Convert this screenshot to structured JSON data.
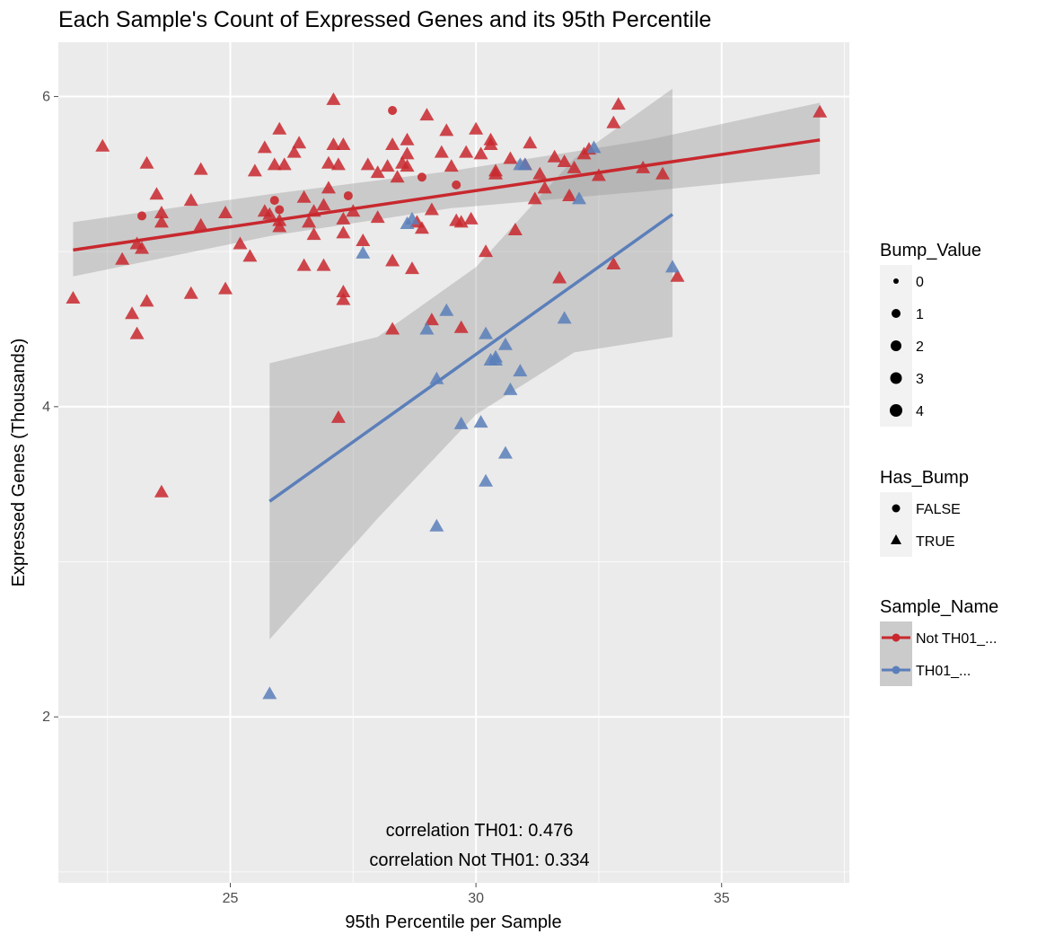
{
  "chart_data": {
    "type": "scatter",
    "title": "Each Sample's Count of Expressed Genes and its 95th Percentile",
    "xlabel": "95th Percentile per Sample",
    "ylabel": "Expressed Genes (Thousands)",
    "xlim": [
      21.5,
      37.6
    ],
    "ylim": [
      0.93,
      6.35
    ],
    "x_ticks": [
      25,
      30,
      35
    ],
    "y_ticks": [
      2,
      4,
      6
    ],
    "grid": true,
    "colors": {
      "not_th01": "#c8282e",
      "th01": "#5b7fba",
      "panel_bg": "#ebebeb",
      "ribbon": "#999999"
    },
    "legend_placement": "right",
    "legends": {
      "bump_value": {
        "title": "Bump_Value",
        "items": [
          "0",
          "1",
          "2",
          "3",
          "4"
        ]
      },
      "has_bump": {
        "title": "Has_Bump",
        "items": [
          "FALSE",
          "TRUE"
        ]
      },
      "sample_name": {
        "title": "Sample_Name",
        "items": [
          "Not TH01_...",
          "TH01_..."
        ]
      }
    },
    "annotations": [
      "correlation TH01: 0.476",
      "correlation Not TH01: 0.334"
    ],
    "trend_lines": [
      {
        "series": "Not TH01_...",
        "x": [
          21.8,
          37.0
        ],
        "y": [
          5.01,
          5.72
        ],
        "band_x": [
          21.8,
          25.8,
          29.5,
          33.5,
          37.0
        ],
        "band_lo": [
          4.84,
          5.1,
          5.28,
          5.39,
          5.5
        ],
        "band_hi": [
          5.19,
          5.37,
          5.52,
          5.72,
          5.96
        ]
      },
      {
        "series": "TH01_...",
        "x": [
          25.8,
          34.0
        ],
        "y": [
          3.39,
          5.24
        ],
        "band_x": [
          25.8,
          28.0,
          30.0,
          32.0,
          34.0
        ],
        "band_lo": [
          2.5,
          3.28,
          3.95,
          4.35,
          4.45
        ],
        "band_hi": [
          4.28,
          4.45,
          4.9,
          5.6,
          6.05
        ]
      }
    ],
    "series": [
      {
        "name": "Not TH01_...",
        "shape": "circle",
        "x": [
          23.2,
          25.9,
          26.0,
          27.4,
          28.3,
          28.9,
          29.6
        ],
        "y": [
          5.23,
          5.33,
          5.27,
          5.36,
          5.91,
          5.48,
          5.43
        ]
      },
      {
        "name": "Not TH01_...",
        "shape": "triangle",
        "x": [
          21.8,
          22.4,
          22.8,
          23.0,
          23.1,
          23.1,
          23.2,
          23.3,
          23.3,
          23.5,
          23.6,
          23.6,
          24.2,
          24.2,
          24.4,
          24.4,
          24.9,
          24.9,
          25.2,
          25.4,
          25.5,
          25.7,
          25.7,
          25.8,
          25.9,
          26.0,
          26.0,
          26.0,
          26.1,
          26.3,
          26.4,
          26.5,
          26.5,
          26.6,
          26.7,
          26.7,
          26.9,
          26.9,
          27.0,
          27.0,
          27.1,
          27.1,
          27.2,
          27.3,
          27.3,
          27.3,
          27.3,
          27.3,
          27.5,
          27.7,
          27.8,
          28.0,
          28.0,
          28.2,
          28.3,
          28.3,
          28.4,
          28.5,
          28.6,
          28.6,
          28.6,
          28.7,
          28.8,
          28.9,
          29.0,
          29.1,
          29.3,
          29.4,
          29.5,
          29.6,
          29.7,
          29.8,
          29.9,
          30.0,
          30.1,
          30.2,
          30.3,
          30.3,
          30.4,
          30.4,
          30.7,
          30.8,
          31.0,
          31.1,
          31.2,
          31.3,
          31.4,
          31.6,
          31.7,
          31.8,
          31.9,
          32.0,
          32.2,
          32.3,
          32.5,
          32.8,
          32.8,
          32.9,
          33.4,
          33.8,
          34.1,
          37.0,
          27.2,
          23.6,
          28.3,
          29.1,
          29.7
        ],
        "y": [
          4.7,
          5.68,
          4.95,
          4.6,
          4.47,
          5.05,
          5.02,
          5.57,
          4.68,
          5.37,
          5.19,
          3.45,
          5.33,
          4.73,
          5.17,
          5.53,
          5.25,
          4.76,
          5.05,
          4.97,
          5.52,
          5.67,
          5.26,
          5.24,
          5.56,
          5.2,
          5.79,
          5.16,
          5.56,
          5.64,
          5.7,
          5.35,
          4.91,
          5.19,
          5.11,
          5.26,
          5.3,
          4.91,
          5.57,
          5.41,
          5.98,
          5.69,
          5.56,
          5.21,
          5.69,
          4.74,
          4.69,
          5.12,
          5.26,
          5.07,
          5.56,
          5.51,
          5.22,
          5.55,
          4.94,
          5.69,
          5.48,
          5.57,
          5.63,
          5.72,
          5.55,
          4.89,
          5.19,
          5.15,
          5.88,
          5.27,
          5.64,
          5.78,
          5.55,
          5.2,
          5.19,
          5.64,
          5.21,
          5.79,
          5.63,
          5.0,
          5.69,
          5.72,
          5.52,
          5.5,
          5.6,
          5.14,
          5.56,
          5.7,
          5.34,
          5.5,
          5.41,
          5.61,
          4.83,
          5.58,
          5.36,
          5.54,
          5.63,
          5.66,
          5.49,
          5.83,
          4.92,
          5.95,
          5.54,
          5.5,
          4.84,
          5.9,
          3.93,
          5.25,
          4.5,
          4.56,
          4.51
        ]
      },
      {
        "name": "TH01_...",
        "shape": "triangle",
        "x": [
          25.8,
          27.7,
          28.6,
          28.7,
          29.0,
          29.2,
          29.2,
          29.4,
          29.7,
          30.1,
          30.2,
          30.2,
          30.3,
          30.4,
          30.4,
          30.6,
          30.6,
          30.7,
          30.9,
          30.9,
          31.0,
          31.8,
          32.1,
          32.4,
          34.0
        ],
        "y": [
          2.15,
          4.99,
          5.18,
          5.21,
          4.5,
          4.18,
          3.23,
          4.62,
          3.89,
          3.9,
          3.52,
          4.47,
          4.3,
          4.3,
          4.32,
          4.4,
          3.7,
          4.11,
          4.23,
          5.56,
          5.56,
          4.57,
          5.34,
          5.67,
          4.9
        ]
      }
    ]
  }
}
